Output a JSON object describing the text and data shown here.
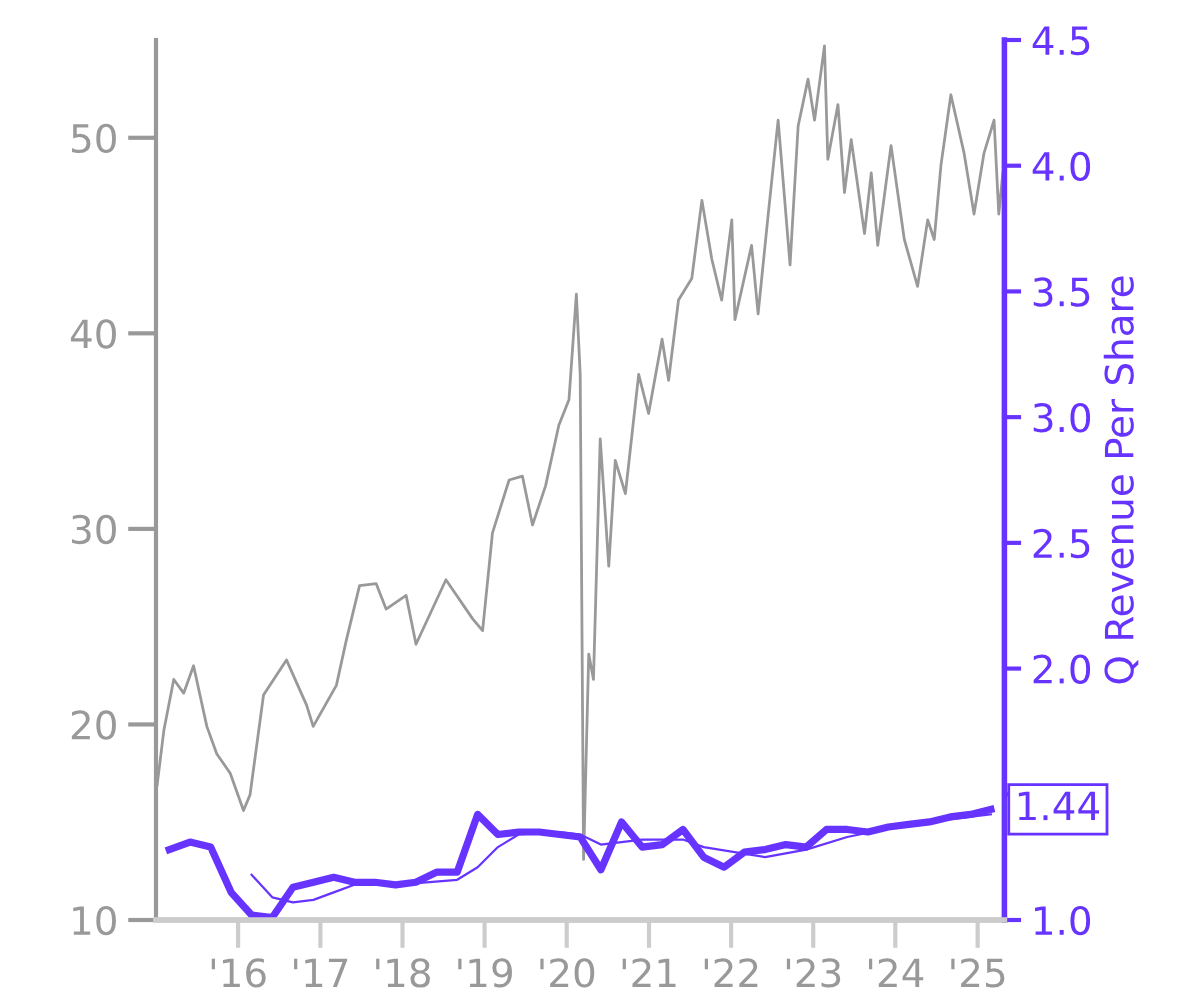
{
  "chart_data": {
    "type": "line",
    "y2label": "Q Revenue Per Share",
    "xlim": [
      "2015-01-01",
      "2025-04-30"
    ],
    "xticks": [
      {
        "value": "2016-01-01",
        "label": "'16"
      },
      {
        "value": "2017-01-01",
        "label": "'17"
      },
      {
        "value": "2018-01-01",
        "label": "'18"
      },
      {
        "value": "2019-01-01",
        "label": "'19"
      },
      {
        "value": "2020-01-01",
        "label": "'20"
      },
      {
        "value": "2021-01-01",
        "label": "'21"
      },
      {
        "value": "2022-01-01",
        "label": "'22"
      },
      {
        "value": "2023-01-01",
        "label": "'23"
      },
      {
        "value": "2024-01-01",
        "label": "'24"
      },
      {
        "value": "2025-01-01",
        "label": "'25"
      }
    ],
    "ylim": [
      10,
      55
    ],
    "yticks": [
      10,
      20,
      30,
      40,
      50
    ],
    "y2lim": [
      1.0,
      4.5
    ],
    "y2ticks": [
      {
        "value": 1.0,
        "label": "1.0"
      },
      {
        "value": 1.5,
        "label": null
      },
      {
        "value": 2.0,
        "label": "2.0"
      },
      {
        "value": 2.5,
        "label": "2.5"
      },
      {
        "value": 3.0,
        "label": "3.0"
      },
      {
        "value": 3.5,
        "label": "3.5"
      },
      {
        "value": 4.0,
        "label": "4.0"
      },
      {
        "value": 4.5,
        "label": "4.5"
      }
    ],
    "grid": false,
    "legend": false,
    "series": [
      {
        "color": "#999999",
        "axis": "y",
        "x": [
          "2015-01-06",
          "2015-02-05",
          "2015-03-21",
          "2015-05-04",
          "2015-06-17",
          "2015-08-15",
          "2015-09-28",
          "2015-11-27",
          "2016-01-25",
          "2016-02-23",
          "2016-04-23",
          "2016-08-03",
          "2016-10-31",
          "2016-11-30",
          "2017-03-13",
          "2017-04-26",
          "2017-06-24",
          "2017-09-06",
          "2017-10-20",
          "2018-01-17",
          "2018-03-02",
          "2018-07-13",
          "2018-11-09",
          "2018-12-23",
          "2019-02-05",
          "2019-04-20",
          "2019-06-18",
          "2019-08-02",
          "2019-09-29",
          "2019-11-27",
          "2020-01-11",
          "2020-02-13",
          "2020-03-01",
          "2020-03-16",
          "2020-04-08",
          "2020-04-29",
          "2020-05-29",
          "2020-07-06",
          "2020-08-04",
          "2020-09-18",
          "2020-11-16",
          "2020-12-30",
          "2021-02-28",
          "2021-03-29",
          "2021-05-12",
          "2021-07-10",
          "2021-08-24",
          "2021-10-07",
          "2021-11-20",
          "2022-01-04",
          "2022-01-18",
          "2022-04-02",
          "2022-05-01",
          "2022-06-15",
          "2022-07-29",
          "2022-09-20",
          "2022-10-26",
          "2022-12-09",
          "2023-01-07",
          "2023-02-20",
          "2023-03-07",
          "2023-04-21",
          "2023-05-20",
          "2023-06-19",
          "2023-08-17",
          "2023-09-16",
          "2023-10-15",
          "2023-12-13",
          "2024-02-10",
          "2024-04-09",
          "2024-05-24",
          "2024-06-22",
          "2024-07-22",
          "2024-09-04",
          "2024-11-02",
          "2024-12-16",
          "2025-01-29",
          "2025-03-15",
          "2025-04-05",
          "2025-04-23"
        ],
        "values": [
          16.9,
          19.7,
          22.3,
          21.6,
          23.0,
          19.9,
          18.5,
          17.5,
          15.6,
          16.4,
          21.5,
          23.3,
          21.0,
          19.9,
          22.0,
          24.3,
          27.1,
          27.2,
          25.9,
          26.6,
          24.1,
          27.4,
          25.4,
          24.8,
          29.8,
          32.5,
          32.7,
          30.2,
          32.2,
          35.3,
          36.6,
          42.0,
          37.9,
          13.1,
          23.6,
          22.3,
          34.6,
          28.1,
          33.5,
          31.8,
          37.9,
          35.9,
          39.7,
          37.6,
          41.7,
          42.8,
          46.8,
          43.8,
          41.7,
          45.8,
          40.7,
          44.5,
          41.0,
          46.1,
          50.9,
          43.5,
          50.6,
          53.0,
          50.9,
          54.7,
          48.9,
          51.7,
          47.2,
          49.9,
          45.1,
          48.2,
          44.5,
          49.6,
          44.8,
          42.4,
          45.8,
          44.8,
          48.6,
          52.2,
          49.2,
          46.1,
          49.2,
          50.9,
          46.1,
          48.2
        ]
      },
      {
        "color": "#6633ff",
        "axis": "y2",
        "x": [
          "2015-03",
          "2015-06",
          "2015-09",
          "2015-12",
          "2016-03",
          "2016-06",
          "2016-09",
          "2016-12",
          "2017-03",
          "2017-06",
          "2017-09",
          "2017-12",
          "2018-03",
          "2018-06",
          "2018-09",
          "2018-12",
          "2019-03",
          "2019-06",
          "2019-09",
          "2019-12",
          "2020-03",
          "2020-06",
          "2020-09",
          "2020-12",
          "2021-03",
          "2021-06",
          "2021-09",
          "2021-12",
          "2022-03",
          "2022-06",
          "2022-09",
          "2022-12",
          "2023-03",
          "2023-06",
          "2023-09",
          "2023-12",
          "2024-03",
          "2024-06",
          "2024-09",
          "2024-12",
          "2025-03"
        ],
        "values": [
          1.28,
          1.31,
          1.29,
          1.11,
          1.02,
          1.01,
          1.13,
          1.15,
          1.17,
          1.15,
          1.15,
          1.14,
          1.15,
          1.19,
          1.19,
          1.42,
          1.34,
          1.35,
          1.35,
          1.34,
          1.33,
          1.2,
          1.39,
          1.29,
          1.3,
          1.36,
          1.25,
          1.21,
          1.27,
          1.28,
          1.3,
          1.29,
          1.36,
          1.36,
          1.35,
          1.37,
          1.38,
          1.39,
          1.41,
          1.42,
          1.44
        ]
      },
      {
        "color": "#6633ff",
        "axis": "y2",
        "x": [
          "2016-03",
          "2016-06",
          "2016-09",
          "2016-12",
          "2017-03",
          "2017-06",
          "2017-12",
          "2018-09",
          "2018-12",
          "2019-03",
          "2019-06",
          "2019-12",
          "2020-03",
          "2020-06",
          "2020-12",
          "2021-06",
          "2021-09",
          "2022-06",
          "2022-12",
          "2023-06",
          "2024-03",
          "2025-03"
        ],
        "values": [
          1.18,
          1.09,
          1.07,
          1.08,
          1.11,
          1.14,
          1.14,
          1.16,
          1.21,
          1.29,
          1.34,
          1.35,
          1.34,
          1.3,
          1.32,
          1.32,
          1.29,
          1.25,
          1.28,
          1.33,
          1.38,
          1.42
        ]
      }
    ],
    "annotations": [
      "1.44"
    ]
  }
}
